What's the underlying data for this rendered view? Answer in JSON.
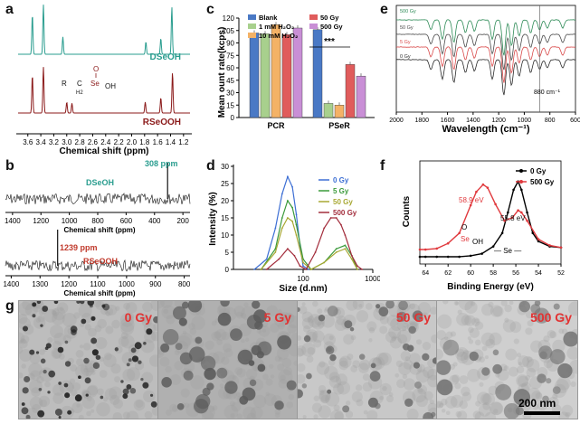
{
  "panel_letters": {
    "a": "a",
    "b": "b",
    "c": "c",
    "d": "d",
    "e": "e",
    "f": "f",
    "g": "g"
  },
  "chart_data": [
    {
      "panel": "a",
      "type": "line",
      "xlabel": "Chemical shift (ppm)",
      "xticks": [
        "3.6",
        "3.4",
        "3.2",
        "3.0",
        "2.8",
        "2.6",
        "2.4",
        "2.2",
        "2.0",
        "1.8",
        "1.6",
        "1.4",
        "1.2"
      ],
      "xlim": [
        3.75,
        1.1
      ],
      "series": [
        {
          "name": "DSeOH",
          "color": "#2a9d8f",
          "peaks": [
            [
              3.53,
              0.8
            ],
            [
              3.36,
              1.0
            ],
            [
              3.06,
              0.35
            ],
            [
              1.78,
              0.25
            ],
            [
              1.55,
              0.32
            ],
            [
              1.38,
              0.95
            ]
          ]
        },
        {
          "name": "RSeOOH",
          "color": "#8b1a1a",
          "peaks": [
            [
              3.53,
              0.7
            ],
            [
              3.36,
              0.85
            ],
            [
              3.0,
              0.2
            ],
            [
              2.92,
              0.18
            ],
            [
              1.79,
              0.2
            ],
            [
              1.55,
              0.28
            ],
            [
              1.37,
              0.75
            ]
          ]
        }
      ],
      "structure": {
        "R": "R",
        "C": "C",
        "H2": "H2",
        "Se": "Se",
        "O": "O",
        "OH": "OH"
      }
    },
    {
      "panel": "b",
      "type": "line",
      "xlabel": "Chemical shift (ppm)",
      "series": [
        {
          "name": "DSeOH",
          "color": "#2a9d8f",
          "annotation": "308 ppm",
          "peak_ppm": 308,
          "xticks": [
            "1400",
            "1200",
            "1000",
            "800",
            "600",
            "400",
            "200"
          ],
          "xlim": [
            1450,
            150
          ]
        },
        {
          "name": "RSeOOH",
          "color": "#c0392b",
          "annotation": "1239 ppm",
          "peak_ppm": 1239,
          "xticks": [
            "1400",
            "1300",
            "1200",
            "1100",
            "1000",
            "900",
            "800"
          ],
          "xlim": [
            1420,
            780
          ]
        }
      ]
    },
    {
      "panel": "c",
      "type": "bar",
      "ylabel": "Mean ount rate(kcps)",
      "categories": [
        "PCR",
        "PSeR"
      ],
      "yticks": [
        "0",
        "15",
        "30",
        "45",
        "60",
        "75",
        "90",
        "105",
        "120"
      ],
      "ylim": [
        0,
        120
      ],
      "series": [
        {
          "name": "Blank",
          "color": "#4a79c5",
          "values": [
            102,
            106
          ]
        },
        {
          "name": "1 mM H₂O₂",
          "color": "#a8d08d",
          "values": [
            101,
            17
          ]
        },
        {
          "name": "10 mM H₂O₂",
          "color": "#f4b266",
          "values": [
            112,
            15
          ]
        },
        {
          "name": "50 Gy",
          "color": "#e05c5c",
          "values": [
            100,
            64
          ]
        },
        {
          "name": "500 Gy",
          "color": "#c98fd6",
          "values": [
            108,
            50
          ]
        }
      ],
      "annotation": "***"
    },
    {
      "panel": "d",
      "type": "line",
      "xlabel": "Size (d.nm)",
      "ylabel": "Intensity (%)",
      "xscale": "log",
      "xlim": [
        10,
        1000
      ],
      "ylim": [
        0,
        30
      ],
      "yticks": [
        "0",
        "5",
        "10",
        "15",
        "20",
        "25",
        "30"
      ],
      "xticks": [
        "100",
        "1000"
      ],
      "series": [
        {
          "name": "0 Gy",
          "color": "#3d6fd4",
          "x": [
            20,
            30,
            40,
            50,
            60,
            70,
            80,
            90,
            100,
            120
          ],
          "y": [
            0,
            3,
            12,
            22,
            27,
            24,
            16,
            7,
            1,
            0
          ]
        },
        {
          "name": "5 Gy",
          "color": "#3b9a3b",
          "x": [
            25,
            40,
            50,
            60,
            70,
            80,
            100,
            130,
            200,
            300,
            400,
            500,
            600
          ],
          "y": [
            0,
            6,
            15,
            20,
            18,
            13,
            3,
            0,
            2,
            6,
            7,
            4,
            0
          ]
        },
        {
          "name": "50 Gy",
          "color": "#a8a833",
          "x": [
            25,
            40,
            50,
            60,
            70,
            80,
            100,
            130,
            200,
            300,
            400,
            500,
            600
          ],
          "y": [
            0,
            5,
            12,
            15,
            14,
            10,
            2,
            0,
            2,
            5,
            6,
            3,
            0
          ]
        },
        {
          "name": "500 Gy",
          "color": "#a32d3c",
          "x": [
            30,
            45,
            60,
            75,
            90,
            110,
            150,
            200,
            250,
            300,
            350,
            400,
            500,
            600,
            700
          ],
          "y": [
            0,
            3,
            6,
            4,
            1,
            0,
            5,
            12,
            15,
            15,
            13,
            10,
            4,
            1,
            0
          ]
        }
      ]
    },
    {
      "panel": "e",
      "type": "line",
      "xlabel": "Wavelength (cm⁻¹)",
      "xticks": [
        "2000",
        "1800",
        "1600",
        "1400",
        "1200",
        "1000",
        "800",
        "600"
      ],
      "xlim": [
        2000,
        600
      ],
      "annotation": "880 cm⁻¹",
      "marker_x": 880,
      "series": [
        {
          "name": "500 Gy",
          "color": "#2e8b57"
        },
        {
          "name": "50 Gy",
          "color": "#4a4a4a"
        },
        {
          "name": "5 Gy",
          "color": "#d94a4a"
        },
        {
          "name": "0 Gy",
          "color": "#2b2b2b"
        }
      ]
    },
    {
      "panel": "f",
      "type": "line",
      "xlabel": "Binding Energy (eV)",
      "ylabel": "Counts",
      "xticks": [
        "52",
        "54",
        "56",
        "58",
        "60",
        "62",
        "64"
      ],
      "xlim": [
        52,
        64.5
      ],
      "annotations": [
        "58.9 eV",
        "55.8 eV",
        "Se",
        "OH",
        "O",
        "— Se —"
      ],
      "series": [
        {
          "name": "0 Gy",
          "color": "#000000",
          "x": [
            52,
            53,
            54,
            54.5,
            55,
            55.5,
            55.8,
            56.2,
            56.7,
            57.2,
            58,
            59,
            60,
            61,
            62,
            63,
            64,
            64.5
          ],
          "y": [
            0.16,
            0.17,
            0.22,
            0.3,
            0.5,
            0.72,
            0.8,
            0.72,
            0.5,
            0.3,
            0.17,
            0.1,
            0.08,
            0.07,
            0.07,
            0.07,
            0.07,
            0.07
          ]
        },
        {
          "name": "500 Gy",
          "color": "#e0393d",
          "x": [
            52,
            53,
            54,
            55,
            55.5,
            55.8,
            56.3,
            57,
            57.8,
            58.5,
            58.9,
            59.5,
            60,
            61,
            62,
            63,
            64,
            64.5
          ],
          "y": [
            0.16,
            0.18,
            0.24,
            0.42,
            0.5,
            0.52,
            0.45,
            0.42,
            0.58,
            0.74,
            0.77,
            0.7,
            0.57,
            0.3,
            0.2,
            0.15,
            0.14,
            0.14
          ]
        }
      ]
    }
  ],
  "tem_images": [
    {
      "label": "0 Gy"
    },
    {
      "label": "5 Gy"
    },
    {
      "label": "50 Gy"
    },
    {
      "label": "500 Gy"
    }
  ],
  "scale_bar": "200 nm"
}
